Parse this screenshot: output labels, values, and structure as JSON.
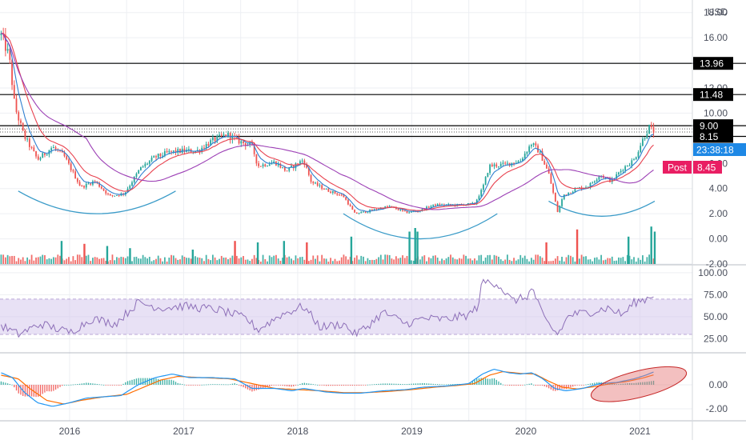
{
  "currency": "USD",
  "colors": {
    "up": "#26a69a",
    "down": "#ef5350",
    "bg": "#ffffff",
    "grid": "#edeff3",
    "ema_fast": "#2f7fd0",
    "ema_mid": "#e8424f",
    "sma_slow": "#9c3fb5",
    "bowl": "#3a9bc8",
    "rsi_line": "#8d6fb8",
    "rsi_band": "#d6c8ec",
    "macd_line": "#2196f3",
    "signal_line": "#ff6d00",
    "ellipse": "#e57373",
    "level": "#000000",
    "last_price_tag": "#1e88e5",
    "post_tag": "#e91e63"
  },
  "chart_data": [
    {
      "type": "candlestick",
      "panel": "price",
      "x_axis": {
        "ticks": [
          "2016",
          "2017",
          "2018",
          "2019",
          "2020",
          "2021"
        ],
        "range": [
          2015.39,
          2021.46
        ]
      },
      "y_axis": {
        "range": [
          -2,
          19
        ],
        "ticks": [
          "-2.00",
          "0.00",
          "2.00",
          "4.00",
          "6.00",
          "8.00",
          "10.00",
          "12.00",
          "14.00",
          "16.00",
          "18.00"
        ]
      },
      "ohlc_anchors": [
        {
          "t": 2015.4,
          "price": 16.2
        },
        {
          "t": 2015.47,
          "price": 14.5
        },
        {
          "t": 2015.52,
          "price": 10.5
        },
        {
          "t": 2015.6,
          "price": 8.2
        },
        {
          "t": 2015.72,
          "price": 6.3
        },
        {
          "t": 2015.85,
          "price": 7.3
        },
        {
          "t": 2015.95,
          "price": 6.6
        },
        {
          "t": 2016.1,
          "price": 4.1
        },
        {
          "t": 2016.22,
          "price": 4.6
        },
        {
          "t": 2016.35,
          "price": 3.4
        },
        {
          "t": 2016.48,
          "price": 3.6
        },
        {
          "t": 2016.62,
          "price": 5.6
        },
        {
          "t": 2016.75,
          "price": 6.5
        },
        {
          "t": 2016.88,
          "price": 6.9
        },
        {
          "t": 2017.0,
          "price": 7.0
        },
        {
          "t": 2017.12,
          "price": 7.0
        },
        {
          "t": 2017.25,
          "price": 7.8
        },
        {
          "t": 2017.38,
          "price": 8.3
        },
        {
          "t": 2017.5,
          "price": 7.7
        },
        {
          "t": 2017.6,
          "price": 7.4
        },
        {
          "t": 2017.65,
          "price": 5.8
        },
        {
          "t": 2017.8,
          "price": 6.1
        },
        {
          "t": 2017.9,
          "price": 5.4
        },
        {
          "t": 2018.05,
          "price": 6.3
        },
        {
          "t": 2018.12,
          "price": 4.5
        },
        {
          "t": 2018.25,
          "price": 3.9
        },
        {
          "t": 2018.4,
          "price": 3.4
        },
        {
          "t": 2018.5,
          "price": 2.0
        },
        {
          "t": 2018.62,
          "price": 2.2
        },
        {
          "t": 2018.8,
          "price": 2.6
        },
        {
          "t": 2018.95,
          "price": 2.1
        },
        {
          "t": 2019.05,
          "price": 2.2
        },
        {
          "t": 2019.2,
          "price": 2.7
        },
        {
          "t": 2019.4,
          "price": 2.7
        },
        {
          "t": 2019.55,
          "price": 2.8
        },
        {
          "t": 2019.62,
          "price": 4.0
        },
        {
          "t": 2019.68,
          "price": 5.8
        },
        {
          "t": 2019.8,
          "price": 5.9
        },
        {
          "t": 2019.95,
          "price": 6.2
        },
        {
          "t": 2020.05,
          "price": 7.6
        },
        {
          "t": 2020.12,
          "price": 6.9
        },
        {
          "t": 2020.2,
          "price": 5.2
        },
        {
          "t": 2020.28,
          "price": 2.1
        },
        {
          "t": 2020.33,
          "price": 3.5
        },
        {
          "t": 2020.45,
          "price": 4.0
        },
        {
          "t": 2020.55,
          "price": 4.2
        },
        {
          "t": 2020.65,
          "price": 5.1
        },
        {
          "t": 2020.75,
          "price": 4.6
        },
        {
          "t": 2020.85,
          "price": 5.6
        },
        {
          "t": 2020.95,
          "price": 6.3
        },
        {
          "t": 2021.02,
          "price": 7.8
        },
        {
          "t": 2021.08,
          "price": 8.9
        },
        {
          "t": 2021.12,
          "price": 8.45
        }
      ],
      "horizontal_levels": [
        13.96,
        11.48,
        9.0,
        8.15
      ],
      "dotted_levels": [
        8.75,
        8.5
      ],
      "price_tags": [
        {
          "label": "13.96",
          "price": 13.96,
          "style": "level"
        },
        {
          "label": "11.48",
          "price": 11.48,
          "style": "level"
        },
        {
          "label": "9.00",
          "price": 9.0,
          "style": "level"
        },
        {
          "label": "8.15",
          "price": 8.15,
          "style": "level"
        },
        {
          "label": "23:38:18",
          "price": 7.1,
          "style": "last"
        },
        {
          "label": "Post",
          "value_label": "8.45",
          "price": 5.7,
          "style": "post"
        }
      ],
      "rounded_bottoms": [
        {
          "from": 2015.55,
          "to": 2016.93,
          "rim_price": 3.8,
          "low_price": 2.0
        },
        {
          "from": 2018.4,
          "to": 2019.75,
          "rim_price": 2.0,
          "low_price": 0.0
        },
        {
          "from": 2020.2,
          "to": 2021.13,
          "rim_price": 3.0,
          "low_price": 1.8
        }
      ],
      "volume_spikes": [
        {
          "t": 2015.93,
          "h": 0.32,
          "up": true
        },
        {
          "t": 2016.13,
          "h": 0.28,
          "up": false
        },
        {
          "t": 2016.33,
          "h": 0.25,
          "up": true
        },
        {
          "t": 2016.53,
          "h": 0.22,
          "up": true
        },
        {
          "t": 2017.08,
          "h": 0.2,
          "up": true
        },
        {
          "t": 2017.45,
          "h": 0.32,
          "up": false
        },
        {
          "t": 2017.65,
          "h": 0.3,
          "up": true
        },
        {
          "t": 2017.88,
          "h": 0.32,
          "up": true
        },
        {
          "t": 2018.08,
          "h": 0.3,
          "up": false
        },
        {
          "t": 2018.47,
          "h": 0.38,
          "up": true
        },
        {
          "t": 2018.98,
          "h": 0.45,
          "up": true
        },
        {
          "t": 2019.03,
          "h": 0.5,
          "up": true
        },
        {
          "t": 2019.05,
          "h": 0.45,
          "up": true
        },
        {
          "t": 2020.18,
          "h": 0.3,
          "up": false
        },
        {
          "t": 2020.45,
          "h": 0.48,
          "up": false
        },
        {
          "t": 2020.9,
          "h": 0.38,
          "up": true
        },
        {
          "t": 2021.1,
          "h": 0.52,
          "up": true
        },
        {
          "t": 2021.13,
          "h": 0.45,
          "up": true
        }
      ]
    },
    {
      "type": "line",
      "panel": "rsi",
      "y_axis": {
        "range": [
          10,
          108
        ],
        "ticks": [
          "25.00",
          "50.00",
          "75.00",
          "100.00"
        ]
      },
      "band": [
        30,
        70
      ],
      "anchors": [
        {
          "t": 2015.4,
          "v": 40
        },
        {
          "t": 2015.55,
          "v": 30
        },
        {
          "t": 2015.75,
          "v": 42
        },
        {
          "t": 2016.0,
          "v": 32
        },
        {
          "t": 2016.2,
          "v": 48
        },
        {
          "t": 2016.4,
          "v": 42
        },
        {
          "t": 2016.6,
          "v": 66
        },
        {
          "t": 2016.8,
          "v": 60
        },
        {
          "t": 2017.0,
          "v": 62
        },
        {
          "t": 2017.3,
          "v": 58
        },
        {
          "t": 2017.55,
          "v": 48
        },
        {
          "t": 2017.65,
          "v": 35
        },
        {
          "t": 2017.85,
          "v": 52
        },
        {
          "t": 2018.05,
          "v": 62
        },
        {
          "t": 2018.2,
          "v": 38
        },
        {
          "t": 2018.4,
          "v": 42
        },
        {
          "t": 2018.5,
          "v": 30
        },
        {
          "t": 2018.6,
          "v": 38
        },
        {
          "t": 2018.75,
          "v": 55
        },
        {
          "t": 2018.95,
          "v": 42
        },
        {
          "t": 2019.1,
          "v": 48
        },
        {
          "t": 2019.3,
          "v": 47
        },
        {
          "t": 2019.5,
          "v": 52
        },
        {
          "t": 2019.58,
          "v": 62
        },
        {
          "t": 2019.62,
          "v": 90
        },
        {
          "t": 2019.75,
          "v": 88
        },
        {
          "t": 2019.88,
          "v": 68
        },
        {
          "t": 2020.0,
          "v": 72
        },
        {
          "t": 2020.06,
          "v": 82
        },
        {
          "t": 2020.15,
          "v": 50
        },
        {
          "t": 2020.22,
          "v": 38
        },
        {
          "t": 2020.28,
          "v": 30
        },
        {
          "t": 2020.38,
          "v": 52
        },
        {
          "t": 2020.55,
          "v": 55
        },
        {
          "t": 2020.72,
          "v": 60
        },
        {
          "t": 2020.85,
          "v": 52
        },
        {
          "t": 2020.95,
          "v": 66
        },
        {
          "t": 2021.05,
          "v": 70
        },
        {
          "t": 2021.13,
          "v": 76
        }
      ]
    },
    {
      "type": "line",
      "panel": "macd",
      "y_axis": {
        "range": [
          -3.0,
          2.6
        ],
        "ticks": [
          "-2.00",
          "0.00"
        ]
      },
      "macd": [
        {
          "t": 2015.4,
          "v": 1.0
        },
        {
          "t": 2015.5,
          "v": 0.6
        },
        {
          "t": 2015.6,
          "v": -0.6
        },
        {
          "t": 2015.72,
          "v": -1.5
        },
        {
          "t": 2015.85,
          "v": -1.8
        },
        {
          "t": 2016.0,
          "v": -1.5
        },
        {
          "t": 2016.15,
          "v": -1.1
        },
        {
          "t": 2016.3,
          "v": -1.0
        },
        {
          "t": 2016.45,
          "v": -0.9
        },
        {
          "t": 2016.6,
          "v": 0.0
        },
        {
          "t": 2016.75,
          "v": 0.6
        },
        {
          "t": 2016.9,
          "v": 0.9
        },
        {
          "t": 2017.05,
          "v": 0.6
        },
        {
          "t": 2017.25,
          "v": 0.6
        },
        {
          "t": 2017.45,
          "v": 0.5
        },
        {
          "t": 2017.6,
          "v": -0.3
        },
        {
          "t": 2017.8,
          "v": -0.3
        },
        {
          "t": 2017.95,
          "v": -0.5
        },
        {
          "t": 2018.05,
          "v": -0.3
        },
        {
          "t": 2018.25,
          "v": -0.6
        },
        {
          "t": 2018.4,
          "v": -0.7
        },
        {
          "t": 2018.55,
          "v": -0.7
        },
        {
          "t": 2018.75,
          "v": -0.5
        },
        {
          "t": 2018.95,
          "v": -0.4
        },
        {
          "t": 2019.1,
          "v": -0.2
        },
        {
          "t": 2019.3,
          "v": -0.1
        },
        {
          "t": 2019.5,
          "v": 0.1
        },
        {
          "t": 2019.62,
          "v": 0.9
        },
        {
          "t": 2019.72,
          "v": 1.3
        },
        {
          "t": 2019.85,
          "v": 1.0
        },
        {
          "t": 2019.95,
          "v": 0.9
        },
        {
          "t": 2020.05,
          "v": 1.0
        },
        {
          "t": 2020.15,
          "v": 0.5
        },
        {
          "t": 2020.25,
          "v": -0.3
        },
        {
          "t": 2020.35,
          "v": -0.5
        },
        {
          "t": 2020.5,
          "v": -0.3
        },
        {
          "t": 2020.65,
          "v": 0.1
        },
        {
          "t": 2020.8,
          "v": 0.2
        },
        {
          "t": 2020.95,
          "v": 0.5
        },
        {
          "t": 2021.05,
          "v": 0.8
        },
        {
          "t": 2021.13,
          "v": 1.1
        }
      ],
      "signal": [
        {
          "t": 2015.4,
          "v": 0.8
        },
        {
          "t": 2015.55,
          "v": 0.5
        },
        {
          "t": 2015.65,
          "v": -0.3
        },
        {
          "t": 2015.8,
          "v": -1.3
        },
        {
          "t": 2015.95,
          "v": -1.6
        },
        {
          "t": 2016.1,
          "v": -1.3
        },
        {
          "t": 2016.3,
          "v": -1.0
        },
        {
          "t": 2016.5,
          "v": -0.8
        },
        {
          "t": 2016.65,
          "v": -0.2
        },
        {
          "t": 2016.8,
          "v": 0.4
        },
        {
          "t": 2016.95,
          "v": 0.7
        },
        {
          "t": 2017.15,
          "v": 0.6
        },
        {
          "t": 2017.4,
          "v": 0.5
        },
        {
          "t": 2017.6,
          "v": 0.1
        },
        {
          "t": 2017.8,
          "v": -0.3
        },
        {
          "t": 2018.0,
          "v": -0.4
        },
        {
          "t": 2018.2,
          "v": -0.5
        },
        {
          "t": 2018.4,
          "v": -0.65
        },
        {
          "t": 2018.6,
          "v": -0.65
        },
        {
          "t": 2018.8,
          "v": -0.55
        },
        {
          "t": 2019.0,
          "v": -0.4
        },
        {
          "t": 2019.2,
          "v": -0.2
        },
        {
          "t": 2019.4,
          "v": -0.05
        },
        {
          "t": 2019.55,
          "v": 0.1
        },
        {
          "t": 2019.68,
          "v": 0.8
        },
        {
          "t": 2019.8,
          "v": 1.1
        },
        {
          "t": 2019.95,
          "v": 0.95
        },
        {
          "t": 2020.08,
          "v": 0.9
        },
        {
          "t": 2020.2,
          "v": 0.3
        },
        {
          "t": 2020.32,
          "v": -0.2
        },
        {
          "t": 2020.45,
          "v": -0.35
        },
        {
          "t": 2020.6,
          "v": -0.15
        },
        {
          "t": 2020.75,
          "v": 0.1
        },
        {
          "t": 2020.9,
          "v": 0.3
        },
        {
          "t": 2021.02,
          "v": 0.55
        },
        {
          "t": 2021.13,
          "v": 0.85
        }
      ],
      "highlight_ellipse": {
        "t": 2020.99,
        "v": 0.05,
        "rt": 0.43,
        "rv": 1.1
      }
    }
  ]
}
